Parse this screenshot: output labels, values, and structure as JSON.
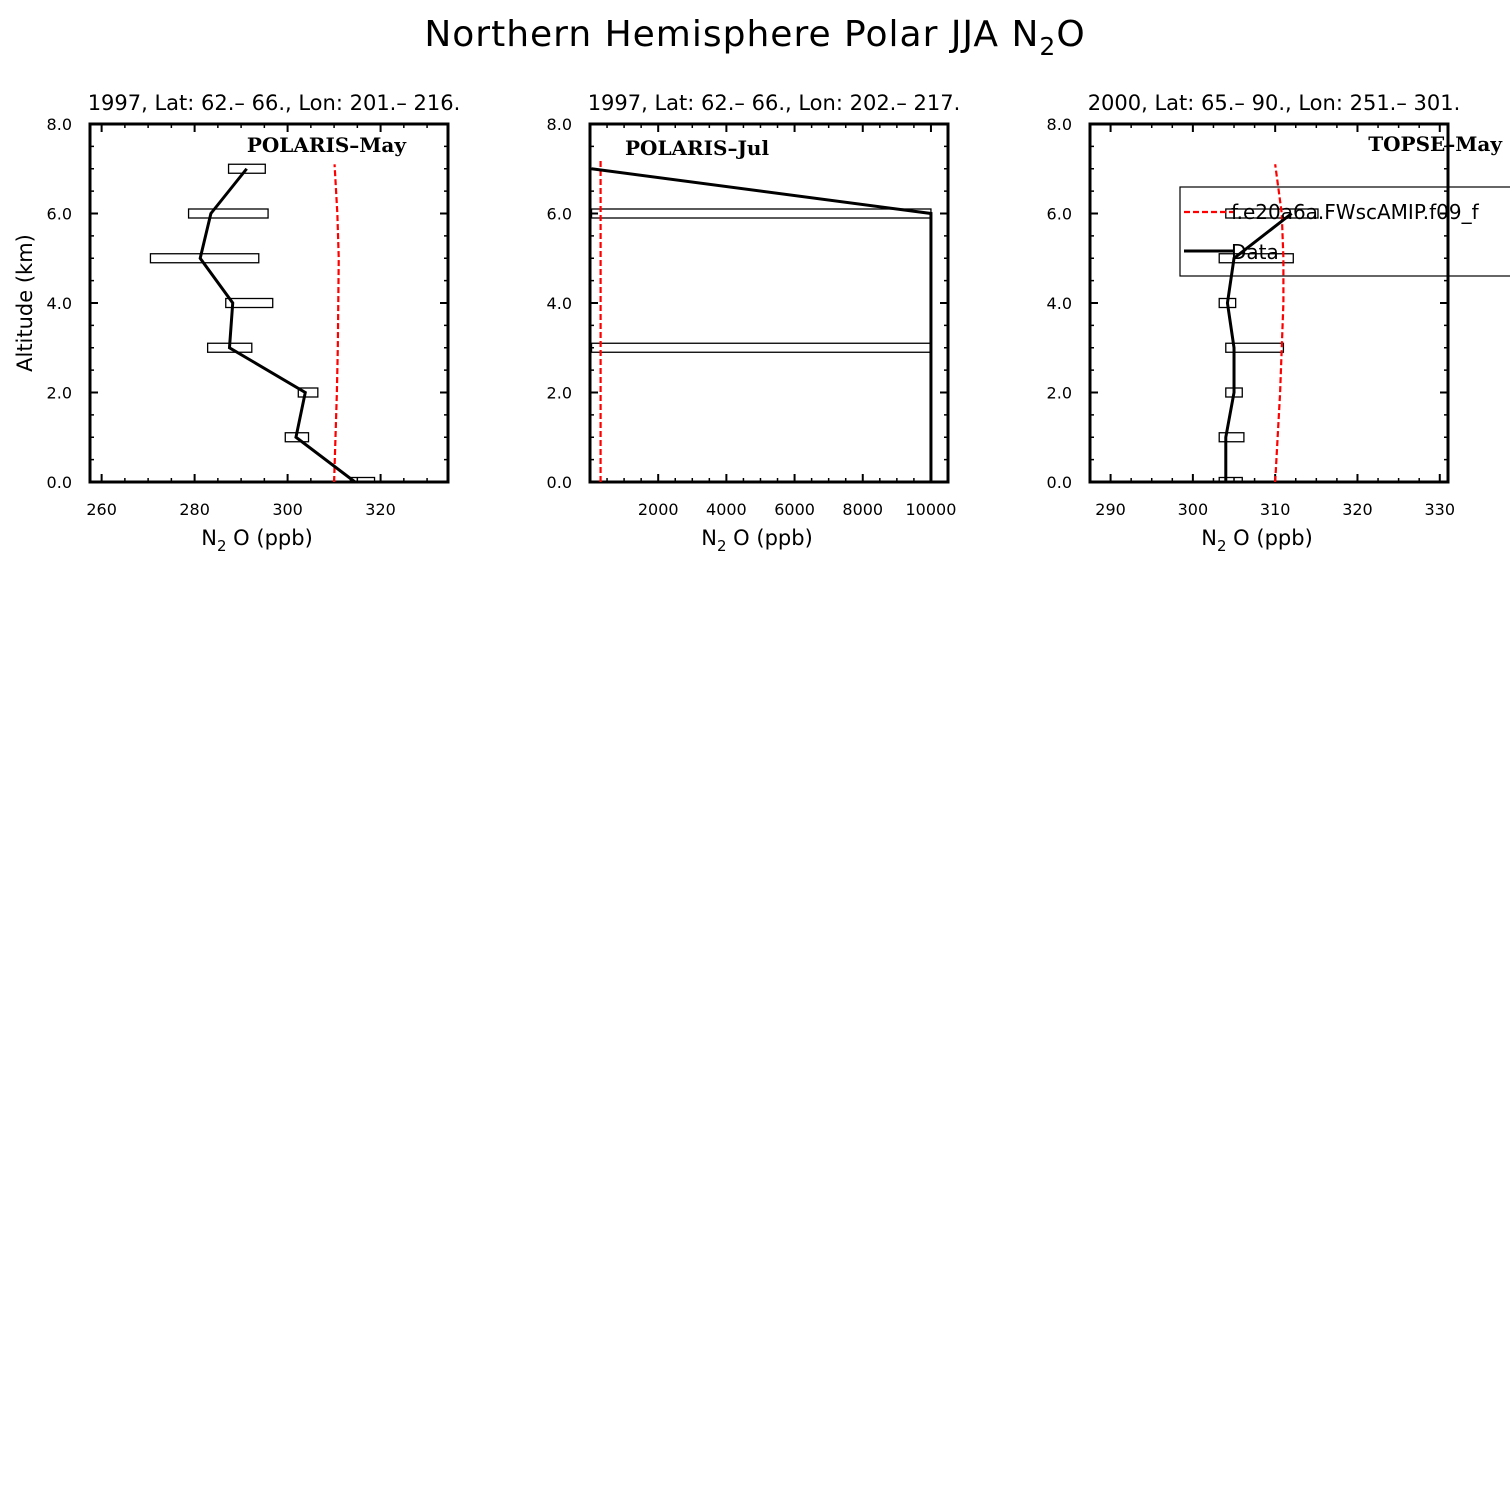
{
  "title": "Northern Hemisphere Polar JJA N",
  "title_sub": "2",
  "title_end": "O",
  "y_axis_label": "Altitude (km)",
  "x_axis_label_pre": "N",
  "x_axis_label_sub": "2",
  "x_axis_label_post": "O (ppb)",
  "legend": {
    "model_label": "f.e20a6a.FWscAMIP.f09_f",
    "data_label": "Data"
  },
  "chart_data": [
    {
      "type": "line",
      "subtitle": "1997, Lat: 62.– 66., Lon: 201.– 216.",
      "campaign": "POLARIS–May",
      "xlim": [
        257.5,
        334.5
      ],
      "ylim": [
        0,
        8
      ],
      "x_ticks": [
        260,
        280,
        300,
        320
      ],
      "y_ticks": [
        0,
        2,
        4,
        6,
        8
      ],
      "y_tick_labels": [
        "0.0",
        "2.0",
        "4.0",
        "6.0",
        "8.0"
      ],
      "show_legend": false,
      "data": {
        "altitude": [
          0,
          1,
          2,
          3,
          4,
          5,
          6,
          7
        ],
        "n2o": [
          314.5,
          301.8,
          303.8,
          287.5,
          288.2,
          281.2,
          283.5,
          291.2
        ],
        "box_lo": [
          313.5,
          299.5,
          302.3,
          282.8,
          286.7,
          270.5,
          278.7,
          287.3
        ],
        "box_hi": [
          318.7,
          304.5,
          306.5,
          292.3,
          296.8,
          293.8,
          295.8,
          295.2
        ]
      },
      "model": {
        "altitude": [
          0,
          1,
          2,
          3,
          4,
          5,
          6,
          7.1
        ],
        "n2o": [
          310.0,
          310.3,
          310.6,
          310.8,
          310.9,
          311.0,
          310.7,
          310.1
        ]
      }
    },
    {
      "type": "line",
      "subtitle": "1997, Lat: 62.– 66., Lon: 202.– 217.",
      "campaign": "POLARIS–Jul",
      "xlim": [
        0,
        10500
      ],
      "ylim": [
        0,
        8
      ],
      "x_ticks": [
        2000,
        4000,
        6000,
        8000,
        10000
      ],
      "y_ticks": [
        0,
        2,
        4,
        6,
        8
      ],
      "y_tick_labels": [
        "0.0",
        "2.0",
        "4.0",
        "6.0",
        "8.0"
      ],
      "show_legend": false,
      "data": {
        "altitude": [
          0,
          1,
          2,
          3,
          4,
          5,
          6,
          7
        ],
        "n2o": [
          10000,
          10000,
          10000,
          10000,
          10000,
          10000,
          10000,
          45
        ],
        "boxes": [
          {
            "altitude": 3,
            "lo": 45,
            "hi": 10000
          },
          {
            "altitude": 6,
            "lo": 45,
            "hi": 10000
          }
        ]
      },
      "model": {
        "altitude": [
          0,
          2,
          4,
          6,
          7.2
        ],
        "n2o": [
          310,
          311,
          311,
          311,
          310
        ]
      }
    },
    {
      "type": "line",
      "subtitle": "2000, Lat: 65.– 90., Lon: 251.– 301.",
      "campaign": "TOPSE–May",
      "xlim": [
        287.5,
        331
      ],
      "ylim": [
        0,
        8
      ],
      "x_ticks": [
        290,
        300,
        310,
        320,
        330
      ],
      "y_ticks": [
        0,
        2,
        4,
        6,
        8
      ],
      "y_tick_labels": [
        "0.0",
        "2.0",
        "4.0",
        "6.0",
        "8.0"
      ],
      "show_legend": true,
      "data": {
        "altitude": [
          0,
          1,
          2,
          3,
          4,
          5,
          6
        ],
        "n2o": [
          304.0,
          304.0,
          305.0,
          305.0,
          304.2,
          305.0,
          312.0
        ],
        "box_lo": [
          303.2,
          303.2,
          304.0,
          304.0,
          303.2,
          303.2,
          304.0
        ],
        "box_hi": [
          306.0,
          306.2,
          306.0,
          311.0,
          305.2,
          312.2,
          315.2
        ]
      },
      "model": {
        "altitude": [
          0,
          1,
          2,
          3,
          4,
          5,
          6,
          7.1
        ],
        "n2o": [
          310.0,
          310.3,
          310.6,
          310.8,
          311.0,
          311.0,
          310.8,
          310.0
        ]
      }
    }
  ]
}
